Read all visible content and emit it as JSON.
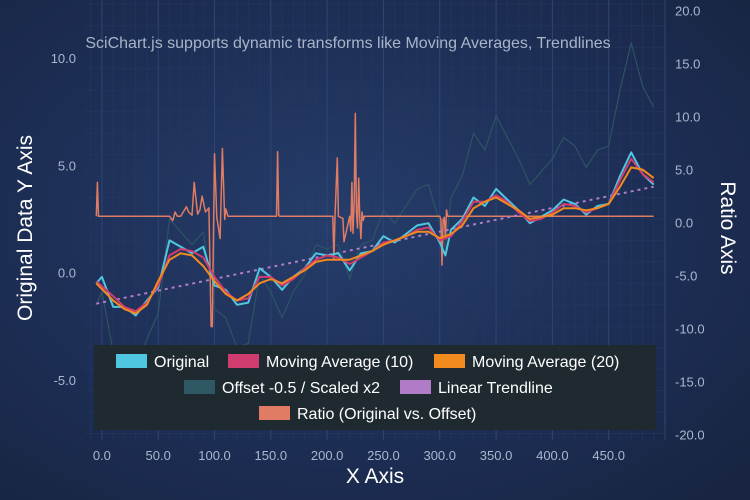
{
  "chart_data": {
    "type": "line",
    "title": "SciChart.js supports dynamic transforms like Moving Averages, Trendlines",
    "xlabel": "X Axis",
    "ylabel_left": "Original Data Y Axis",
    "ylabel_right": "Ratio Axis",
    "xlim": [
      -15,
      500
    ],
    "ylim_left": [
      -7.8,
      12.7
    ],
    "ylim_right": [
      -20.5,
      21
    ],
    "x_ticks": [
      "0.0",
      "50.0",
      "100.0",
      "150.0",
      "200.0",
      "250.0",
      "300.0",
      "350.0",
      "400.0",
      "450.0"
    ],
    "y_left_ticks": [
      "-5.0",
      "0.0",
      "5.0",
      "10.0"
    ],
    "y_right_ticks": [
      "-20.0",
      "-15.0",
      "-10.0",
      "-5.0",
      "0.0",
      "5.0",
      "10.0",
      "15.0",
      "20.0"
    ],
    "grid": true,
    "legend_position": "bottom-center",
    "series": [
      {
        "name": "Original",
        "color": "#50c7e0",
        "axis": "left",
        "x": [
          -5,
          0,
          10,
          20,
          30,
          40,
          50,
          60,
          70,
          80,
          90,
          100,
          110,
          120,
          130,
          140,
          150,
          160,
          170,
          180,
          190,
          200,
          210,
          220,
          230,
          240,
          250,
          260,
          270,
          280,
          290,
          300,
          305,
          310,
          320,
          330,
          340,
          350,
          360,
          370,
          380,
          390,
          400,
          410,
          420,
          430,
          440,
          450,
          460,
          470,
          480,
          490
        ],
        "values": [
          -0.5,
          -0.2,
          -1.6,
          -1.6,
          -2.0,
          -1.3,
          -0.7,
          1.5,
          1.2,
          0.9,
          1.2,
          -0.6,
          -0.8,
          -1.5,
          -1.4,
          0.2,
          -0.2,
          -0.8,
          -0.2,
          0.2,
          0.9,
          0.8,
          0.9,
          0.1,
          0.9,
          1.0,
          1.7,
          1.4,
          1.8,
          2.2,
          2.3,
          1.4,
          0.8,
          2.0,
          2.5,
          3.5,
          3.1,
          3.9,
          3.4,
          2.9,
          2.3,
          2.6,
          2.9,
          3.4,
          3.2,
          2.7,
          3.1,
          3.2,
          4.5,
          5.6,
          4.6,
          4.1
        ]
      },
      {
        "name": "Moving Average (10)",
        "color": "#d03c6e",
        "axis": "left",
        "x": [
          -5,
          10,
          20,
          30,
          40,
          50,
          60,
          70,
          80,
          90,
          100,
          110,
          120,
          130,
          140,
          150,
          160,
          170,
          180,
          190,
          200,
          210,
          220,
          230,
          240,
          250,
          260,
          270,
          280,
          290,
          300,
          310,
          320,
          330,
          340,
          350,
          360,
          370,
          380,
          390,
          400,
          410,
          420,
          430,
          440,
          450,
          460,
          470,
          480,
          490
        ],
        "values": [
          -0.4,
          -1.1,
          -1.6,
          -1.8,
          -1.4,
          -0.6,
          0.8,
          1.1,
          1.0,
          0.7,
          -0.2,
          -0.9,
          -1.3,
          -1.2,
          -0.2,
          -0.2,
          -0.6,
          -0.3,
          0.2,
          0.6,
          0.8,
          0.7,
          0.4,
          0.7,
          1.0,
          1.4,
          1.5,
          1.7,
          2.0,
          2.1,
          1.5,
          1.7,
          2.4,
          3.3,
          3.3,
          3.6,
          3.3,
          2.8,
          2.4,
          2.5,
          2.8,
          3.2,
          3.1,
          2.8,
          3.0,
          3.2,
          4.3,
          5.3,
          4.6,
          4.2
        ]
      },
      {
        "name": "Moving Average (20)",
        "color": "#f28b1d",
        "axis": "left",
        "x": [
          -5,
          10,
          20,
          30,
          40,
          50,
          60,
          70,
          80,
          90,
          100,
          110,
          120,
          130,
          140,
          150,
          160,
          170,
          180,
          190,
          200,
          210,
          220,
          230,
          240,
          250,
          260,
          270,
          280,
          290,
          300,
          310,
          320,
          330,
          340,
          350,
          360,
          370,
          380,
          390,
          400,
          410,
          420,
          430,
          440,
          450,
          460,
          470,
          480,
          490
        ],
        "values": [
          -0.5,
          -1.3,
          -1.7,
          -1.9,
          -1.5,
          -0.4,
          0.6,
          0.9,
          0.8,
          0.3,
          -0.4,
          -1.0,
          -1.3,
          -1.0,
          -0.5,
          -0.3,
          -0.5,
          -0.2,
          0.1,
          0.5,
          0.6,
          0.6,
          0.6,
          0.8,
          1.0,
          1.3,
          1.5,
          1.7,
          1.9,
          1.9,
          1.6,
          1.8,
          2.2,
          3.0,
          3.3,
          3.5,
          3.2,
          2.9,
          2.5,
          2.6,
          2.7,
          3.0,
          3.0,
          2.9,
          3.0,
          3.2,
          4.0,
          4.9,
          4.8,
          4.4
        ]
      },
      {
        "name": "Offset -0.5 / Scaled x2",
        "color": "#2f5865",
        "axis": "left",
        "x": [
          -5,
          0,
          10,
          20,
          30,
          40,
          50,
          60,
          70,
          80,
          90,
          100,
          110,
          120,
          130,
          140,
          150,
          160,
          170,
          180,
          190,
          200,
          210,
          220,
          230,
          240,
          250,
          260,
          270,
          280,
          290,
          300,
          305,
          310,
          320,
          330,
          340,
          350,
          360,
          370,
          380,
          390,
          400,
          410,
          420,
          430,
          440,
          450,
          460,
          470,
          480,
          490
        ],
        "values": [
          -1.5,
          -0.9,
          -3.7,
          -3.7,
          -4.5,
          -3.1,
          -1.9,
          2.5,
          1.9,
          1.3,
          1.9,
          -1.7,
          -2.1,
          -3.5,
          -3.3,
          -0.1,
          -0.9,
          -2.1,
          -0.9,
          -0.1,
          1.3,
          1.1,
          1.3,
          -0.3,
          1.3,
          1.5,
          2.9,
          2.3,
          3.1,
          3.9,
          4.1,
          2.3,
          1.1,
          3.5,
          4.5,
          6.5,
          5.7,
          7.3,
          6.3,
          5.3,
          4.1,
          4.7,
          5.3,
          6.3,
          5.9,
          4.9,
          5.7,
          5.9,
          8.5,
          10.7,
          8.7,
          7.7
        ]
      },
      {
        "name": "Linear Trendline",
        "color": "#b07cc8",
        "axis": "left",
        "x": [
          -5,
          490
        ],
        "values": [
          -1.45,
          4.0
        ]
      },
      {
        "name": "Ratio (Original vs. Offset)",
        "color": "#e07b64",
        "axis": "right",
        "x": [
          -5,
          -4,
          -3,
          -2,
          -1,
          0,
          60,
          63,
          65,
          67,
          70,
          75,
          77,
          80,
          82,
          85,
          87,
          89,
          92,
          95,
          97,
          98,
          100,
          102,
          105,
          107,
          109,
          110,
          112,
          155,
          156,
          157,
          158,
          160,
          205,
          206,
          207,
          209,
          210,
          214,
          215,
          220,
          221,
          222,
          223,
          224,
          225,
          226,
          227,
          228,
          229,
          230,
          231,
          232,
          233,
          300,
          301,
          302,
          303,
          304,
          305,
          306,
          307,
          308,
          490
        ],
        "values": [
          0.6,
          3.8,
          0.6,
          0.6,
          0.6,
          0.6,
          0.6,
          0.2,
          1.0,
          0.6,
          0.6,
          1.5,
          1.0,
          0.7,
          3.8,
          0.8,
          1.2,
          2.5,
          1.0,
          1.4,
          -9.8,
          -9.8,
          6.5,
          0.5,
          -1.5,
          7.0,
          0.3,
          1.3,
          0.6,
          0.6,
          6.7,
          0.7,
          0.6,
          0.6,
          0.6,
          -3.5,
          0.6,
          6.1,
          0.6,
          0.4,
          -1.8,
          0.6,
          -0.8,
          3.8,
          -1.0,
          2.0,
          10.3,
          1.0,
          -0.5,
          4.2,
          0.3,
          -1.5,
          1.0,
          0.2,
          0.6,
          0.6,
          0.3,
          -4.0,
          0.3,
          0.5,
          -1.5,
          1.2,
          0.6,
          0.6,
          0.6
        ]
      }
    ]
  }
}
